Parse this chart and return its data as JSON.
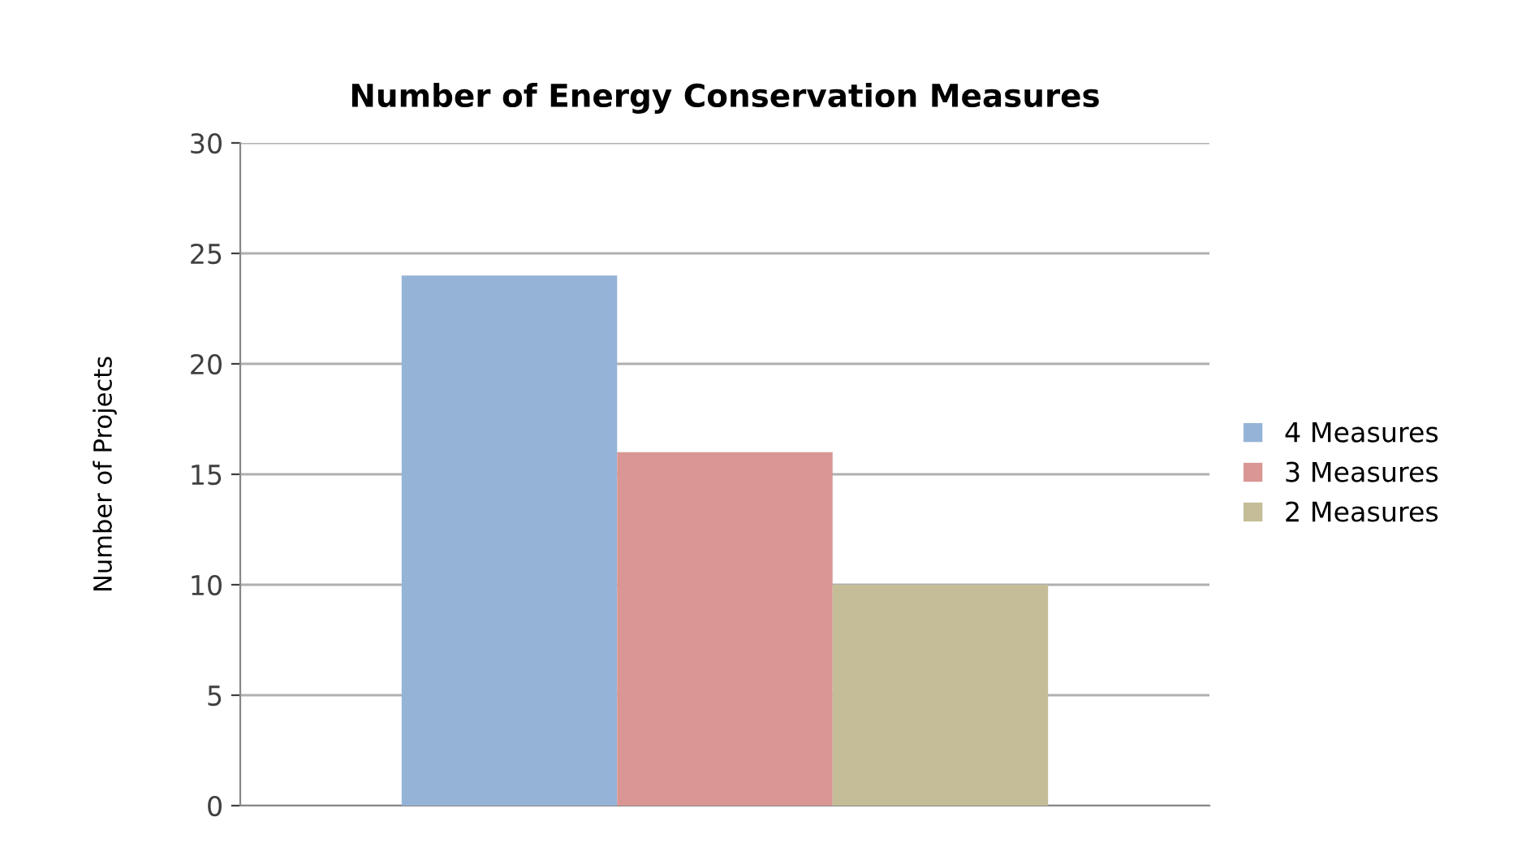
{
  "chart_data": {
    "type": "bar",
    "title": "Number of Energy Conservation Measures",
    "ylabel": "Number of Projects",
    "categories": [
      null
    ],
    "series": [
      {
        "name": "4 Measures",
        "color": "#95b3d7",
        "values": [
          24
        ]
      },
      {
        "name": "3 Measures",
        "color": "#d99694",
        "values": [
          16
        ]
      },
      {
        "name": "2 Measures",
        "color": "#c4bd97",
        "values": [
          10
        ]
      }
    ],
    "ylim": [
      0,
      30
    ],
    "yticks": [
      0,
      5,
      10,
      15,
      20,
      25,
      30
    ],
    "grid": "y",
    "legend": "right"
  }
}
